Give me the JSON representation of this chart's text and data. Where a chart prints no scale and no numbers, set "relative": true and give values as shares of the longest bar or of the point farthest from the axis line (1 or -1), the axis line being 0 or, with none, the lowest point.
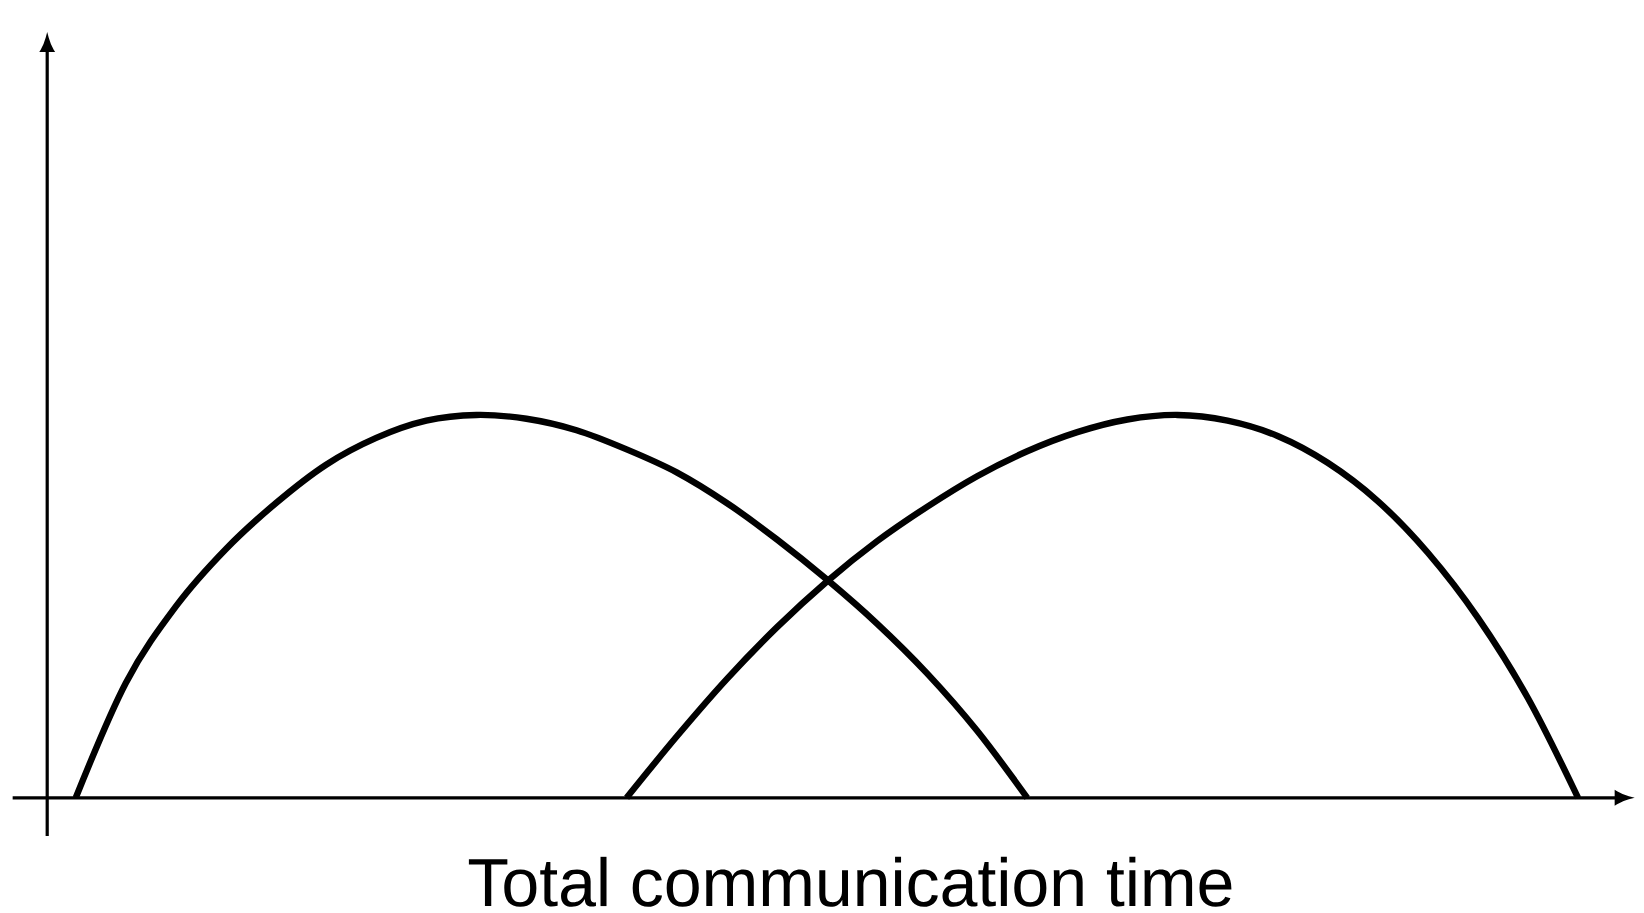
{
  "chart_data": {
    "type": "line",
    "relative": true,
    "xlabel": "Total communication time",
    "categories": [
      null,
      null,
      null,
      null,
      null,
      null,
      null,
      null,
      null,
      null,
      null,
      null,
      null,
      null,
      null,
      null,
      null,
      null,
      null,
      null,
      null,
      null,
      null,
      null,
      null,
      null,
      null,
      null,
      null,
      null,
      null
    ],
    "series": [
      {
        "color": "#000000",
        "values": [
          0,
          0.3,
          0.5,
          0.65,
          0.77,
          0.87,
          0.94,
          0.985,
          1.0,
          0.99,
          0.96,
          0.91,
          0.85,
          0.77,
          0.675,
          0.57,
          0.455,
          0.325,
          0.175,
          0,
          null,
          null,
          null,
          null,
          null,
          null,
          null,
          null,
          null,
          null,
          null
        ]
      },
      {
        "color": "#000000",
        "values": [
          null,
          null,
          null,
          null,
          null,
          null,
          null,
          null,
          null,
          null,
          null,
          0,
          0.16,
          0.31,
          0.445,
          0.565,
          0.67,
          0.76,
          0.84,
          0.905,
          0.955,
          0.988,
          1.0,
          0.985,
          0.945,
          0.875,
          0.775,
          0.64,
          0.47,
          0.26,
          0
        ]
      }
    ]
  }
}
